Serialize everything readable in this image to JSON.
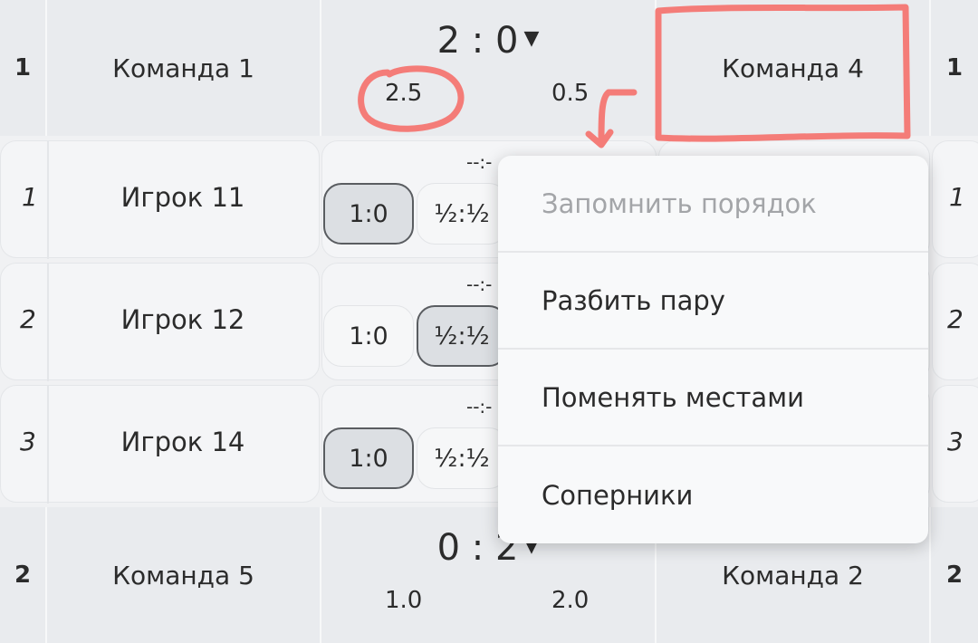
{
  "matches": [
    {
      "board": "1",
      "home": "Команда 1",
      "score": "2 : 0",
      "home_points": "2.5",
      "away_points": "0.5",
      "away": "Команда 4",
      "away_board": "1"
    },
    {
      "board": "2",
      "home": "Команда 5",
      "score": "0 : 2",
      "home_points": "1.0",
      "away_points": "2.0",
      "away": "Команда 2",
      "away_board": "2"
    }
  ],
  "players": [
    {
      "num": "1",
      "name": "Игрок 11",
      "result_placeholder": "--:-",
      "opts": [
        "1:0",
        "½:½"
      ],
      "selected": "1:0",
      "right_num": "1"
    },
    {
      "num": "2",
      "name": "Игрок 12",
      "result_placeholder": "--:-",
      "opts": [
        "1:0",
        "½:½"
      ],
      "selected": "½:½",
      "right_num": "2"
    },
    {
      "num": "3",
      "name": "Игрок 14",
      "result_placeholder": "--:-",
      "opts": [
        "1:0",
        "½:½"
      ],
      "selected": "1:0",
      "right_num": "3"
    }
  ],
  "dropdown_icon": "triangle-down",
  "context_menu": {
    "items": [
      {
        "label": "Запомнить порядок",
        "disabled": true
      },
      {
        "label": "Разбить пару",
        "disabled": false
      },
      {
        "label": "Поменять местами",
        "disabled": false
      },
      {
        "label": "Соперники",
        "disabled": false
      }
    ]
  },
  "annotation_color": "#f47c78"
}
